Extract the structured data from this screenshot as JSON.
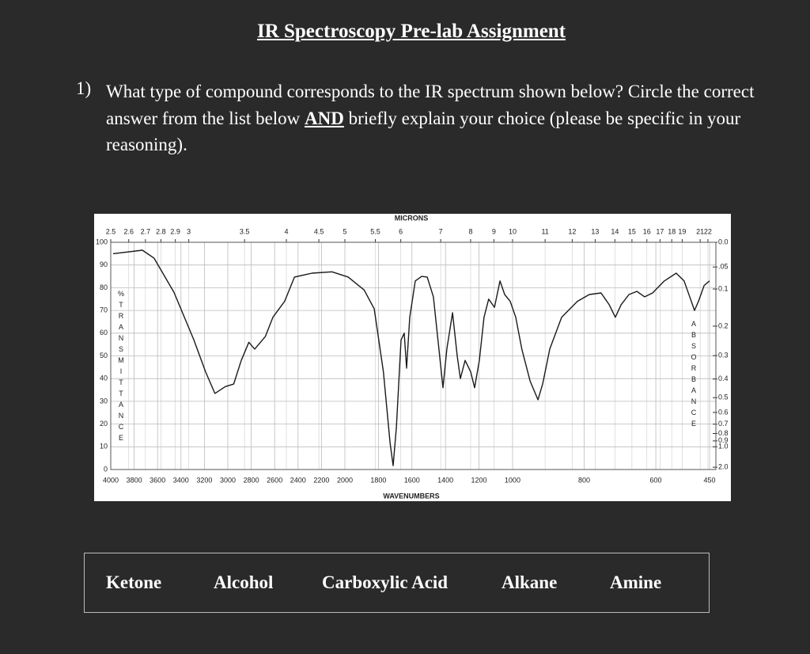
{
  "document": {
    "title": "IR Spectroscopy Pre-lab Assignment",
    "question": {
      "number": "1)",
      "text_before": "What type of compound corresponds to the IR spectrum shown below? Circle the correct answer from the list below ",
      "emphasis": "AND",
      "text_after": " briefly explain your choice (please be specific in your reasoning)."
    },
    "choices": [
      "Ketone",
      "Alcohol",
      "Carboxylic Acid",
      "Alkane",
      "Amine"
    ]
  },
  "chart_data": {
    "type": "line",
    "x2label": "MICRONS",
    "xlabel": "WAVENUMBERS",
    "ylabel": "%TRANSMITTANCE",
    "y2label": "ABSORBANCE",
    "x": [
      3980,
      3730,
      3630,
      3460,
      3290,
      3190,
      3110,
      3020,
      2950,
      2885,
      2820,
      2770,
      2680,
      2615,
      2515,
      2430,
      2280,
      2110,
      1980,
      1885,
      1825,
      1770,
      1730,
      1712,
      1693,
      1665,
      1646,
      1632,
      1613,
      1580,
      1542,
      1509,
      1472,
      1439,
      1415,
      1392,
      1358,
      1330,
      1311,
      1283,
      1250,
      1226,
      1198,
      1170,
      1142,
      1108,
      1075,
      1047,
      1014,
      991,
      974,
      951,
      929,
      916,
      896,
      863,
      819,
      786,
      753,
      730,
      713,
      697,
      675,
      653,
      631,
      609,
      576,
      543,
      521,
      503,
      492,
      481,
      465,
      450
    ],
    "series": [
      {
        "color": "#1a1a1a",
        "values": [
          95,
          96.5,
          93,
          78,
          57,
          43,
          33.5,
          36.5,
          37.6,
          48,
          56,
          53,
          58.5,
          67,
          74,
          84.7,
          86.4,
          87,
          84.7,
          79,
          70.7,
          43,
          11.5,
          1.7,
          18.5,
          57,
          60,
          44.6,
          67,
          83,
          85,
          84.7,
          76,
          53,
          36,
          53,
          69,
          50,
          40,
          48,
          43,
          36,
          48,
          67,
          75,
          71.4,
          83,
          77,
          74,
          67,
          53,
          39,
          30.7,
          37.6,
          53,
          67,
          74,
          77,
          77.7,
          72.5,
          67,
          72.5,
          77,
          78.4,
          76,
          77.7,
          83,
          86.4,
          83,
          75,
          70,
          74,
          81,
          83
        ]
      }
    ],
    "xlim": [
      4000,
      450
    ],
    "ylim": [
      0,
      100
    ],
    "xticks": [
      4000,
      3800,
      3600,
      3400,
      3200,
      3000,
      2800,
      2600,
      2400,
      2200,
      2000,
      1800,
      1600,
      1400,
      1200,
      1000,
      800,
      600,
      450
    ],
    "yticks": [
      0,
      10,
      20,
      30,
      40,
      50,
      60,
      70,
      80,
      90,
      100
    ],
    "x2ticks": [
      2.5,
      2.6,
      2.7,
      2.8,
      2.9,
      3,
      3.5,
      4,
      4.5,
      5,
      5.5,
      6,
      7,
      8,
      9,
      10,
      11,
      12,
      13,
      14,
      15,
      16,
      17,
      18,
      19,
      21,
      22
    ],
    "y2ticks": [
      {
        "value": 0,
        "label": "0.0"
      },
      {
        "value": 0.05,
        "label": ".05"
      },
      0.1,
      0.2,
      0.3,
      0.4,
      0.5,
      0.6,
      0.7,
      0.8,
      0.9,
      {
        "value": 1,
        "label": "1.0"
      },
      {
        "value": 2,
        "label": "2.0"
      }
    ],
    "grid": true
  }
}
